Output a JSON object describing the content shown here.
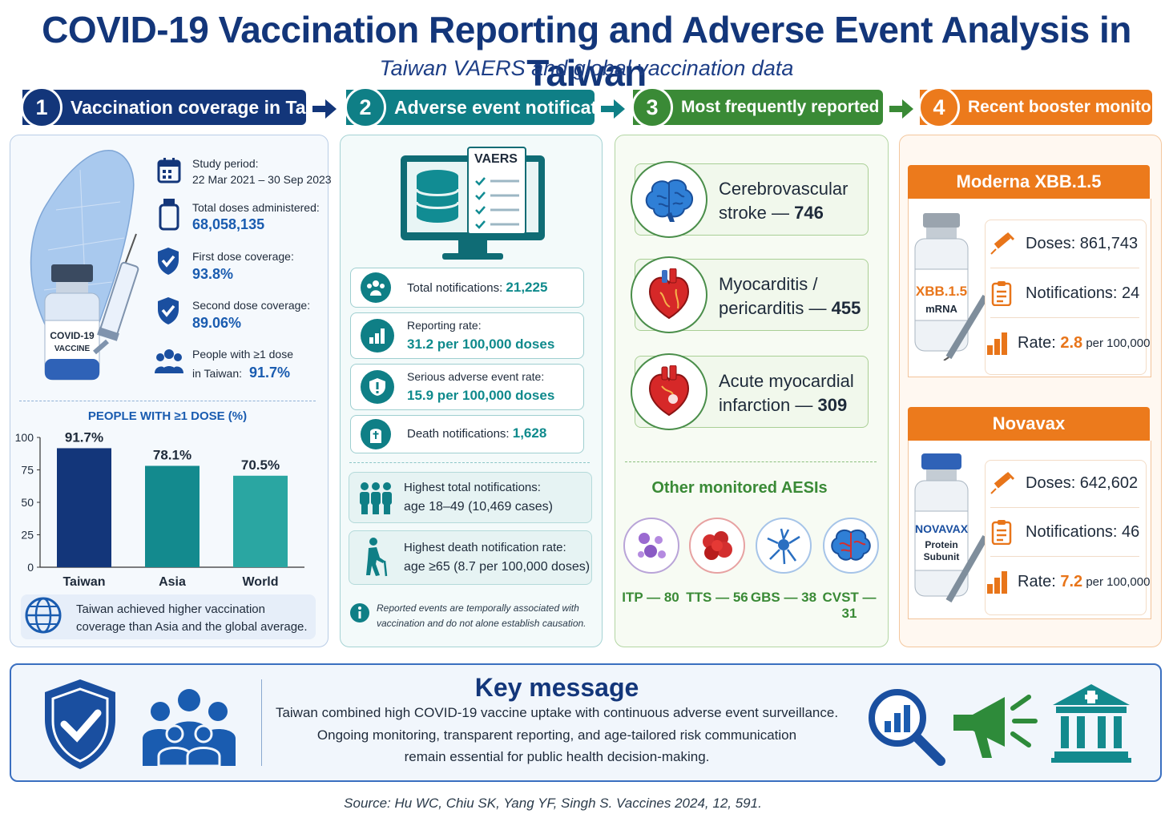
{
  "title": "COVID-19 Vaccination Reporting and Adverse Event Analysis in Taiwan",
  "subtitle": "Taiwan VAERS and global vaccination data",
  "steps": [
    {
      "num": "1",
      "label": "Vaccination coverage in Taiwan",
      "color": "#13367a"
    },
    {
      "num": "2",
      "label": "Adverse event notifications",
      "color": "#0f7f86"
    },
    {
      "num": "3",
      "label": "Most frequently reported AESIs",
      "color": "#3a8a36"
    },
    {
      "num": "4",
      "label": "Recent booster monitoring",
      "color": "#ec7a1c"
    }
  ],
  "coverage": {
    "vial_label_1": "COVID-19",
    "vial_label_2": "VACCINE",
    "study_period_label": "Study period:",
    "study_period_value": "22 Mar 2021 – 30 Sep 2023",
    "doses_label": "Total doses administered:",
    "doses_value": "68,058,135",
    "first_label": "First dose coverage:",
    "first_value": "93.8%",
    "second_label": "Second dose coverage:",
    "second_value": "89.06%",
    "people_label_1": "People with ≥1 dose",
    "people_label_2": "in Taiwan:",
    "people_value": "91.7%",
    "chart_title": "PEOPLE WITH ≥1 DOSE (%)",
    "note": "Taiwan achieved higher vaccination coverage than Asia and the global average."
  },
  "chart_data": {
    "type": "bar",
    "title": "PEOPLE WITH ≥1 DOSE (%)",
    "categories": [
      "Taiwan",
      "Asia",
      "World"
    ],
    "values": [
      91.7,
      78.1,
      70.5
    ],
    "value_labels": [
      "91.7%",
      "78.1%",
      "70.5%"
    ],
    "colors": [
      "#13367a",
      "#138a8e",
      "#2aa6a2"
    ],
    "ylim": [
      0,
      100
    ],
    "yticks": [
      "0",
      "25",
      "50",
      "75",
      "100"
    ],
    "grid": false
  },
  "notifications": {
    "vaers_label": "VAERS",
    "total_label": "Total notifications:",
    "total_value": "21,225",
    "rate_label": "Reporting rate:",
    "rate_value": "31.2 per 100,000 doses",
    "serious_label": "Serious adverse event rate:",
    "serious_value": "15.9 per 100,000 doses",
    "death_label": "Death notifications:",
    "death_value": "1,628",
    "highest_total_1": "Highest total notifications:",
    "highest_total_2": "age 18–49 (10,469 cases)",
    "highest_death_1": "Highest death notification rate:",
    "highest_death_2": "age ≥65 (8.7 per 100,000 doses)",
    "disclaimer": "Reported events are temporally associated with vaccination and do not alone establish causation."
  },
  "aesi": {
    "items": [
      {
        "line1": "Cerebrovascular",
        "line2": "stroke — ",
        "value": "746"
      },
      {
        "line1": "Myocarditis /",
        "line2": "pericarditis — ",
        "value": "455"
      },
      {
        "line1": "Acute myocardial",
        "line2": "infarction — ",
        "value": "309"
      }
    ],
    "other_title": "Other monitored AESIs",
    "others": [
      {
        "label": "ITP — 80",
        "color": "#7c4fb2"
      },
      {
        "label": "TTS — 56",
        "color": "#d32f2f"
      },
      {
        "label": "GBS — 38",
        "color": "#2a6fc1"
      },
      {
        "label": "CVST — 31",
        "color": "#1a5cb0"
      }
    ]
  },
  "booster": {
    "moderna": {
      "title": "Moderna XBB.1.5",
      "vial_1": "XBB.1.5",
      "vial_2": "mRNA",
      "doses": "Doses: 861,743",
      "notifications": "Notifications: 24",
      "rate_prefix": "Rate: ",
      "rate_value": "2.8",
      "rate_suffix": " per 100,000"
    },
    "novavax": {
      "title": "Novavax",
      "vial_1": "NOVAVAX",
      "vial_2": "Protein",
      "vial_3": "Subunit",
      "doses": "Doses: 642,602",
      "notifications": "Notifications: 46",
      "rate_prefix": "Rate: ",
      "rate_value": "7.2",
      "rate_suffix": " per 100,000"
    }
  },
  "key_message": {
    "title": "Key message",
    "line1": "Taiwan combined high COVID-19 vaccine uptake with continuous adverse event surveillance.",
    "line2": "Ongoing monitoring, transparent reporting, and age-tailored risk communication",
    "line3": "remain essential for public health decision-making."
  },
  "source": "Source: Hu WC, Chiu SK, Yang YF, Singh S. Vaccines 2024, 12, 591."
}
